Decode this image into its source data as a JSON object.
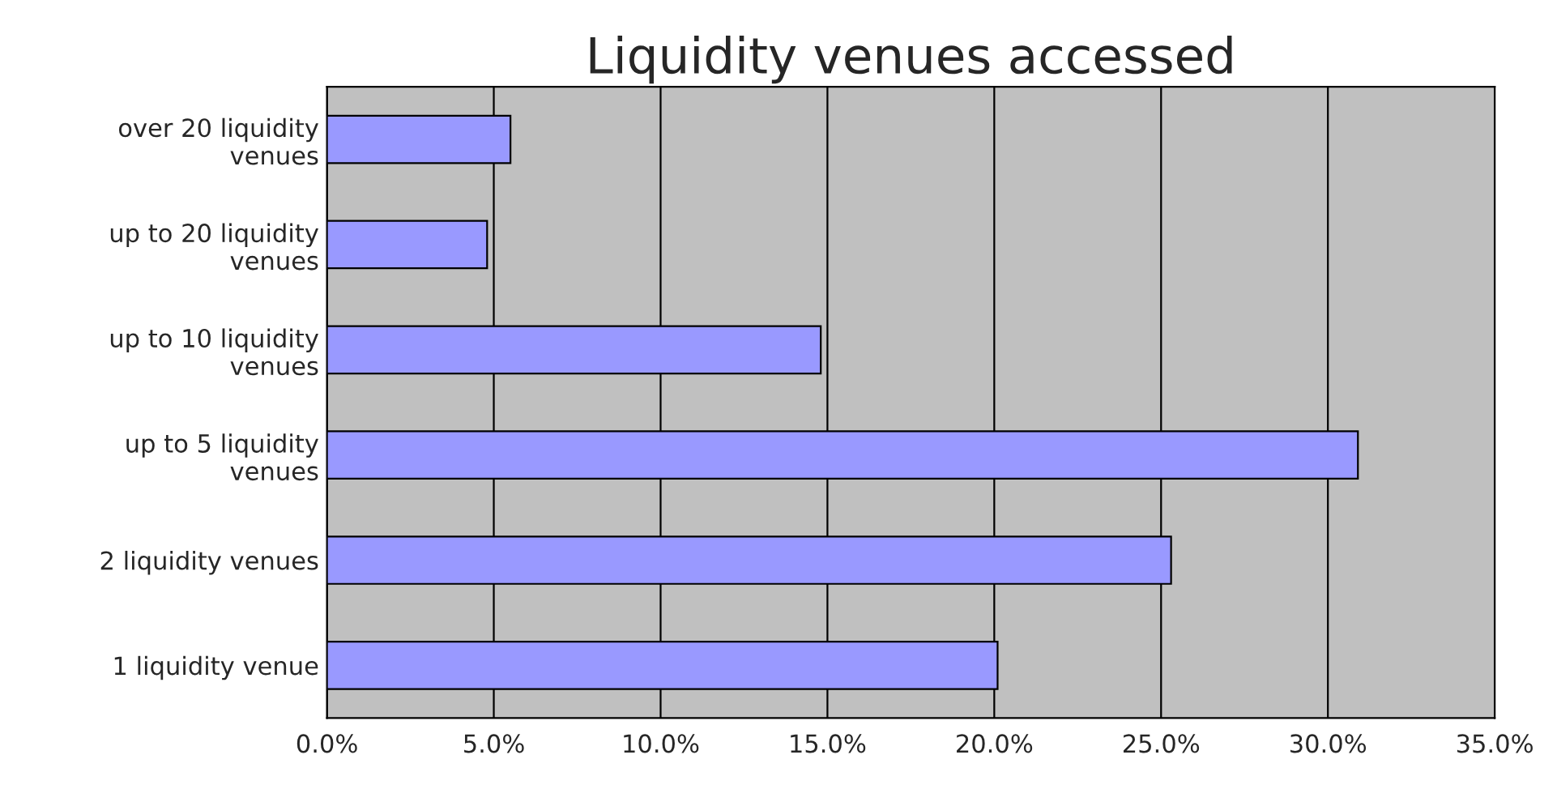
{
  "chart_data": {
    "type": "bar",
    "orientation": "horizontal",
    "title": "Liquidity venues accessed",
    "categories": [
      "over 20 liquidity\nvenues",
      "up to 20 liquidity\nvenues",
      "up to 10 liquidity\nvenues",
      "up to 5 liquidity\nvenues",
      "2 liquidity venues",
      "1 liquidity venue"
    ],
    "values": [
      5.5,
      4.8,
      14.8,
      30.9,
      25.3,
      20.1
    ],
    "color": "#9999ff",
    "xlim": [
      0,
      35
    ],
    "xticks": [
      {
        "value": 0,
        "label": "0.0%"
      },
      {
        "value": 5,
        "label": "5.0%"
      },
      {
        "value": 10,
        "label": "10.0%"
      },
      {
        "value": 15,
        "label": "15.0%"
      },
      {
        "value": 20,
        "label": "20.0%"
      },
      {
        "value": 25,
        "label": "25.0%"
      },
      {
        "value": 30,
        "label": "30.0%"
      },
      {
        "value": 35,
        "label": "35.0%"
      }
    ],
    "grid": "x",
    "legend": false
  }
}
